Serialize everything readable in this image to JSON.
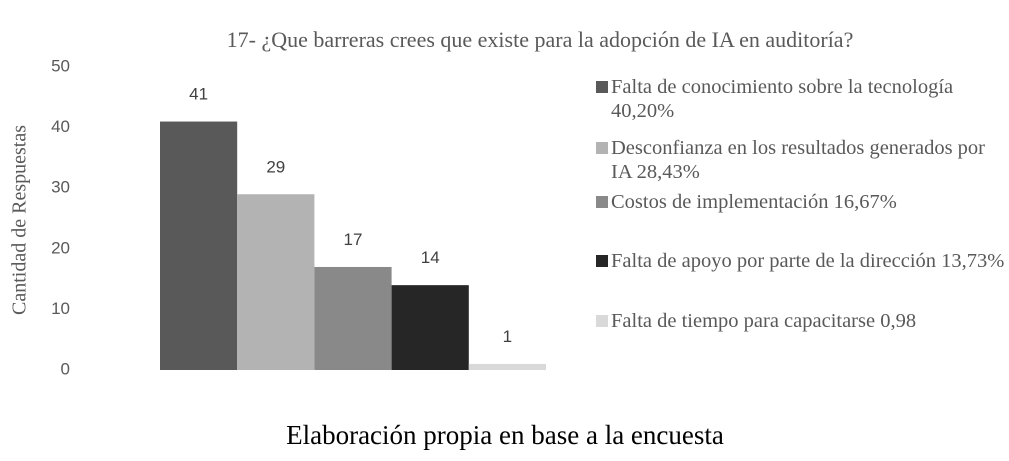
{
  "chart_data": {
    "type": "bar",
    "title": "17- ¿Que barreras crees que existe para la adopción de IA en auditoría?",
    "y_label": "Cantidad de Respuestas",
    "x_label": "Elaboración propia en base a la encuesta",
    "categories": [
      null
    ],
    "series": [
      {
        "name": "Falta de conocimiento sobre la tecnología 40,20%",
        "color": "#595959",
        "values": [
          41
        ]
      },
      {
        "name": "Desconfianza en los resultados generados por IA 28,43%",
        "color": "#b3b3b3",
        "values": [
          29
        ]
      },
      {
        "name": "Costos de implementación 16,67%",
        "color": "#898989",
        "values": [
          17
        ]
      },
      {
        "name": "Falta de apoyo por parte de la dirección 13,73%",
        "color": "#262626",
        "values": [
          14
        ]
      },
      {
        "name": "Falta de tiempo para capacitarse 0,98",
        "color": "#d9d9d9",
        "values": [
          1
        ]
      }
    ],
    "ylim": [
      0,
      50
    ],
    "yticks": [
      0,
      10,
      20,
      30,
      40,
      50
    ],
    "grid": false,
    "legend": "right",
    "data_labels": true
  }
}
